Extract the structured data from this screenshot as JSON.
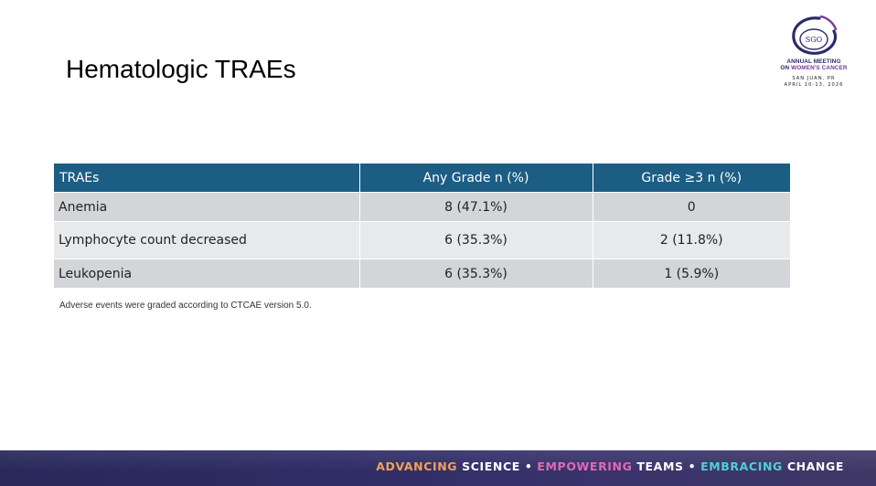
{
  "slide": {
    "title": "Hematologic TRAEs",
    "footnote": "Adverse events were graded according to CTCAE version 5.0."
  },
  "logo": {
    "org": "SGO",
    "line1": "ANNUAL MEETING",
    "line2a": "ON ",
    "line2b": "WOMEN'S CANCER",
    "location": "SAN JUAN, PR",
    "dates": "APRIL 10-13, 2026"
  },
  "table": {
    "headers": [
      "TRAEs",
      "Any Grade n (%)",
      "Grade ≥3 n (%)"
    ],
    "rows": [
      [
        "Anemia",
        "8 (47.1%)",
        "0"
      ],
      [
        "Lymphocyte count decreased",
        "6 (35.3%)",
        "2 (11.8%)"
      ],
      [
        "Leukopenia",
        "6 (35.3%)",
        "1 (5.9%)"
      ]
    ]
  },
  "banner": {
    "w1": "ADVANCING",
    "w2": "SCIENCE",
    "sep1": "•",
    "w3": "EMPOWERING",
    "w4": "TEAMS",
    "sep2": "•",
    "w5": "EMBRACING",
    "w6": "CHANGE"
  },
  "colors": {
    "table_header": "#1c5d84",
    "row_odd": "#d3d5d8",
    "row_even": "#e8e9eb",
    "banner": "#2f2d66",
    "accent_orange": "#f0a05a",
    "accent_pink": "#e06ab4",
    "accent_teal": "#4fd0d0"
  }
}
